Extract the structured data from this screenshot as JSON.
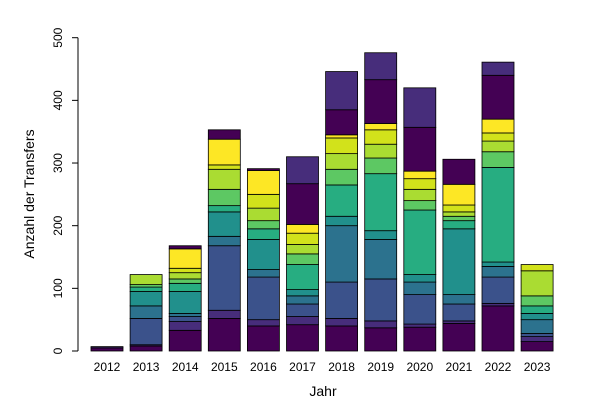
{
  "chart_data": {
    "type": "bar",
    "stacked": true,
    "title": "",
    "xlabel": "Jahr",
    "ylabel": "Anzahl der Transfers",
    "ylim": [
      0,
      500
    ],
    "yticks": [
      0,
      100,
      200,
      300,
      400,
      500
    ],
    "grid": false,
    "legend": "none",
    "palette": [
      "#440154",
      "#472D7B",
      "#3B528B",
      "#2C728E",
      "#21908C",
      "#27AD81",
      "#5DC863",
      "#AADC32",
      "#D2E21B",
      "#FDE725"
    ],
    "categories": [
      "2012",
      "2013",
      "2014",
      "2015",
      "2016",
      "2017",
      "2018",
      "2019",
      "2020",
      "2021",
      "2022",
      "2023"
    ],
    "stacks": [
      {
        "category": "2012",
        "totals": [
          5,
          7
        ]
      },
      {
        "category": "2013",
        "totals": [
          8,
          10,
          52,
          72,
          95,
          102,
          106,
          122
        ]
      },
      {
        "category": "2014",
        "totals": [
          33,
          47,
          55,
          60,
          95,
          108,
          115,
          125,
          132,
          163,
          168
        ]
      },
      {
        "category": "2015",
        "totals": [
          52,
          65,
          168,
          183,
          222,
          232,
          258,
          290,
          297,
          338,
          353
        ]
      },
      {
        "category": "2016",
        "totals": [
          40,
          50,
          118,
          130,
          178,
          195,
          208,
          228,
          250,
          288,
          291
        ]
      },
      {
        "category": "2017",
        "totals": [
          42,
          55,
          75,
          88,
          98,
          138,
          155,
          170,
          188,
          202,
          267,
          310
        ]
      },
      {
        "category": "2018",
        "totals": [
          40,
          52,
          110,
          200,
          215,
          265,
          290,
          315,
          340,
          345,
          385,
          446
        ]
      },
      {
        "category": "2019",
        "totals": [
          37,
          48,
          115,
          178,
          192,
          283,
          308,
          330,
          353,
          363,
          433,
          476
        ]
      },
      {
        "category": "2020",
        "totals": [
          38,
          43,
          90,
          110,
          122,
          225,
          240,
          258,
          275,
          287,
          357,
          420
        ]
      },
      {
        "category": "2021",
        "totals": [
          44,
          48,
          75,
          90,
          195,
          208,
          215,
          222,
          233,
          266,
          306
        ]
      },
      {
        "category": "2022",
        "totals": [
          72,
          76,
          118,
          135,
          142,
          293,
          318,
          335,
          348,
          370,
          440,
          461
        ]
      },
      {
        "category": "2023",
        "totals": [
          15,
          23,
          28,
          50,
          60,
          72,
          88,
          128,
          138
        ]
      }
    ]
  }
}
